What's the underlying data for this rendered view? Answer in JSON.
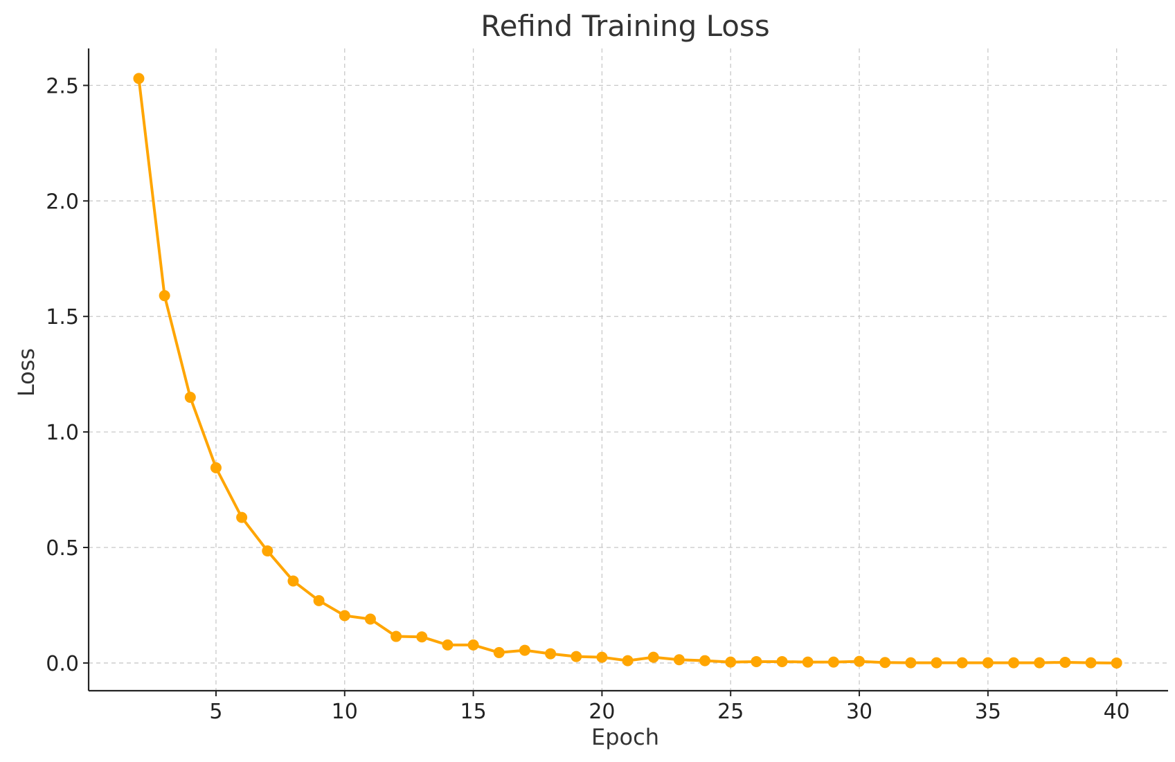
{
  "chart_data": {
    "type": "line",
    "title": "Refind Training Loss",
    "xlabel": "Epoch",
    "ylabel": "Loss",
    "xlim": [
      0.05,
      42.0
    ],
    "ylim": [
      -0.12,
      2.66
    ],
    "xticks": [
      5,
      10,
      15,
      20,
      25,
      30,
      35,
      40
    ],
    "xtick_labels": [
      "5",
      "10",
      "15",
      "20",
      "25",
      "30",
      "35",
      "40"
    ],
    "yticks": [
      0.0,
      0.5,
      1.0,
      1.5,
      2.0,
      2.5
    ],
    "ytick_labels": [
      "0.0",
      "0.5",
      "1.0",
      "1.5",
      "2.0",
      "2.5"
    ],
    "grid": true,
    "color": "#FFA500",
    "series": [
      {
        "x": [
          2,
          3,
          4,
          5,
          6,
          7,
          8,
          9,
          10,
          11,
          12,
          13,
          14,
          15,
          16,
          17,
          18,
          19,
          20,
          21,
          22,
          23,
          24,
          25,
          26,
          27,
          28,
          29,
          30,
          31,
          32,
          33,
          34,
          35,
          36,
          37,
          38,
          39,
          40
        ],
        "values": [
          2.53,
          1.59,
          1.15,
          0.845,
          0.63,
          0.485,
          0.355,
          0.27,
          0.205,
          0.19,
          0.115,
          0.113,
          0.078,
          0.078,
          0.045,
          0.055,
          0.04,
          0.028,
          0.025,
          0.01,
          0.025,
          0.014,
          0.01,
          0.004,
          0.006,
          0.006,
          0.004,
          0.004,
          0.007,
          0.002,
          0.001,
          0.001,
          0.001,
          0.001,
          0.001,
          0.001,
          0.003,
          0.001,
          0.0
        ]
      }
    ]
  }
}
